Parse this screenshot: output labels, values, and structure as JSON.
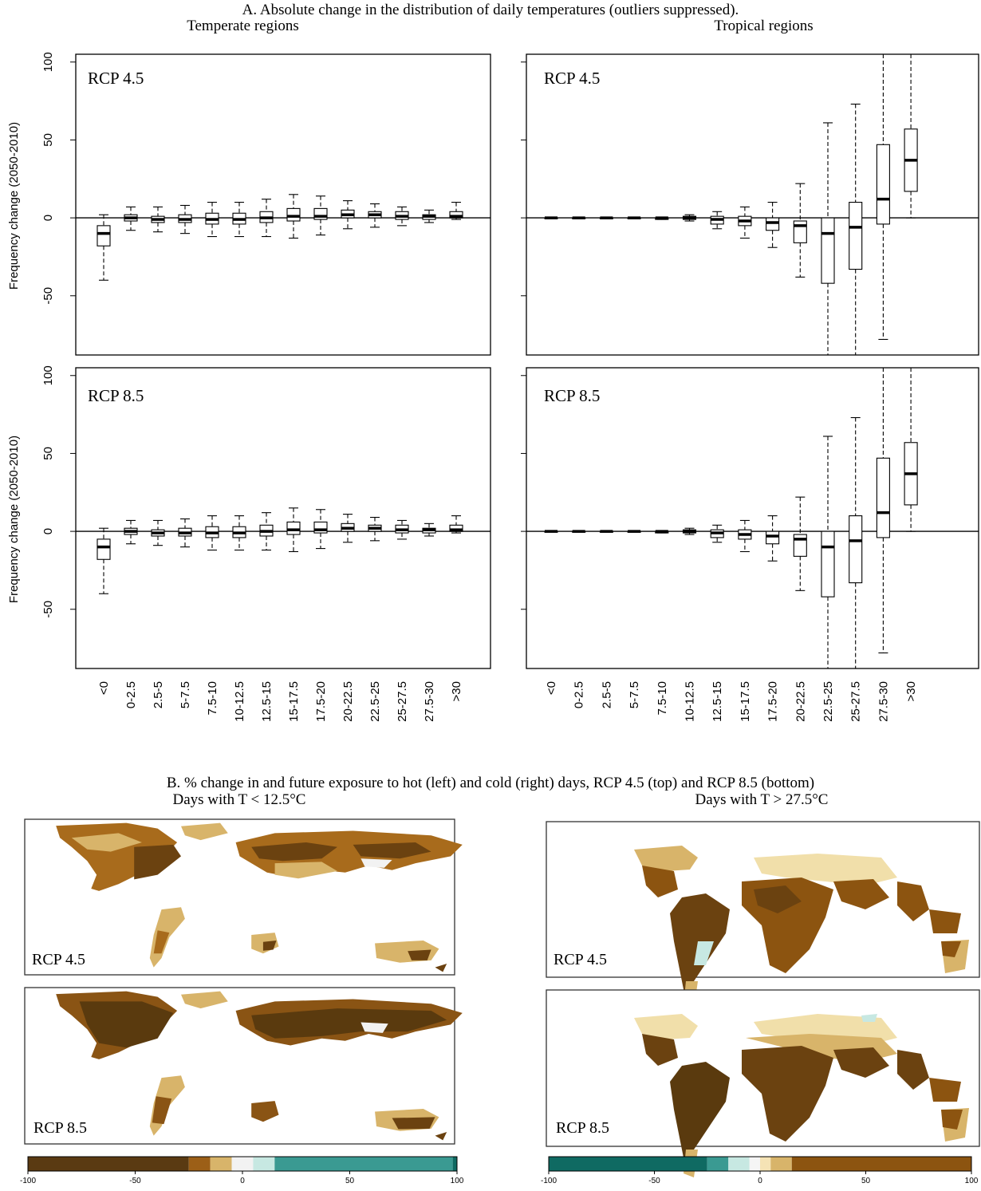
{
  "panel_a": {
    "title": "A. Absolute change in the distribution of daily temperatures (outliers suppressed).",
    "col_titles": [
      "Temperate regions",
      "Tropical regions"
    ],
    "ylabel": "Frequency change (2050-2010)",
    "row_labels": [
      "RCP 4.5",
      "RCP 8.5"
    ]
  },
  "panel_b": {
    "title": "B. % change in and future exposure to hot (left) and cold (right) days, RCP 4.5 (top) and RCP 8.5 (bottom)",
    "left_title": "Days with T < 12.5°C",
    "right_title": "Days with T > 27.5°C",
    "map_labels": [
      "RCP 4.5",
      "RCP 8.5"
    ],
    "colorbar_ticks": [
      "-100",
      "-50",
      "0",
      "50",
      "100"
    ],
    "left_colorbar": [
      {
        "from": -100,
        "to": -25,
        "color": "#5a3a12"
      },
      {
        "from": -25,
        "to": -15,
        "color": "#9c5f17"
      },
      {
        "from": -15,
        "to": -5,
        "color": "#d8b46a"
      },
      {
        "from": -5,
        "to": 5,
        "color": "#f2f2f2"
      },
      {
        "from": 5,
        "to": 15,
        "color": "#c7e8e2"
      },
      {
        "from": 15,
        "to": 98,
        "color": "#3a9a92"
      },
      {
        "from": 98,
        "to": 100,
        "color": "#0f6a62"
      }
    ],
    "right_colorbar": [
      {
        "from": -100,
        "to": -25,
        "color": "#0f6a62"
      },
      {
        "from": -25,
        "to": -15,
        "color": "#3a9a92"
      },
      {
        "from": -15,
        "to": -5,
        "color": "#c7e8e2"
      },
      {
        "from": -5,
        "to": 0,
        "color": "#f5f5f5"
      },
      {
        "from": 0,
        "to": 5,
        "color": "#f5e3b5"
      },
      {
        "from": 5,
        "to": 15,
        "color": "#d8b46a"
      },
      {
        "from": 15,
        "to": 100,
        "color": "#8c5410"
      }
    ],
    "map_colors": {
      "dark_brown": "#6b4210",
      "mid_brown": "#9c6318",
      "tan": "#d8b46a",
      "light_tan": "#f1dfaa",
      "coast_gray": "#b8b8b8"
    }
  },
  "chart_data": [
    {
      "type": "boxplot",
      "title": "Temperate regions",
      "panel_label": "RCP 4.5",
      "ylabel": "Frequency change (2050-2010)",
      "ylim": [
        -88,
        105
      ],
      "yticks": [
        -50,
        0,
        50,
        100
      ],
      "categories": [
        "<0",
        "0-2.5",
        "2.5-5",
        "5-7.5",
        "7.5-10",
        "10-12.5",
        "12.5-15",
        "15-17.5",
        "17.5-20",
        "20-22.5",
        "22.5-25",
        "25-27.5",
        "27.5-30",
        ">30"
      ],
      "boxes": [
        {
          "wlo": -40,
          "q1": -18,
          "med": -10,
          "q3": -5,
          "whi": 2
        },
        {
          "wlo": -8,
          "q1": -2,
          "med": 0,
          "q3": 2,
          "whi": 7
        },
        {
          "wlo": -9,
          "q1": -3,
          "med": -1,
          "q3": 1,
          "whi": 7
        },
        {
          "wlo": -10,
          "q1": -3,
          "med": -1,
          "q3": 2,
          "whi": 8
        },
        {
          "wlo": -12,
          "q1": -4,
          "med": -1,
          "q3": 3,
          "whi": 10
        },
        {
          "wlo": -12,
          "q1": -4,
          "med": -1,
          "q3": 3,
          "whi": 10
        },
        {
          "wlo": -12,
          "q1": -3,
          "med": 0,
          "q3": 4,
          "whi": 12
        },
        {
          "wlo": -13,
          "q1": -2,
          "med": 1,
          "q3": 6,
          "whi": 15
        },
        {
          "wlo": -11,
          "q1": -1,
          "med": 1,
          "q3": 6,
          "whi": 14
        },
        {
          "wlo": -7,
          "q1": 0,
          "med": 2,
          "q3": 5,
          "whi": 11
        },
        {
          "wlo": -6,
          "q1": 0,
          "med": 2,
          "q3": 4,
          "whi": 9
        },
        {
          "wlo": -5,
          "q1": -1,
          "med": 1,
          "q3": 4,
          "whi": 7
        },
        {
          "wlo": -3,
          "q1": -1,
          "med": 1,
          "q3": 2,
          "whi": 5
        },
        {
          "wlo": -1,
          "q1": 0,
          "med": 1,
          "q3": 4,
          "whi": 10
        }
      ]
    },
    {
      "type": "boxplot",
      "title": "Tropical regions",
      "panel_label": "RCP 4.5",
      "ylabel": "",
      "ylim": [
        -88,
        105
      ],
      "yticks": [
        -50,
        0,
        50,
        100
      ],
      "categories": [
        "<0",
        "0-2.5",
        "2.5-5",
        "5-7.5",
        "7.5-10",
        "10-12.5",
        "12.5-15",
        "15-17.5",
        "17.5-20",
        "20-22.5",
        "22.5-25",
        "25-27.5",
        "27.5-30",
        ">30"
      ],
      "boxes": [
        {
          "wlo": 0,
          "q1": 0,
          "med": 0,
          "q3": 0,
          "whi": 0
        },
        {
          "wlo": 0,
          "q1": 0,
          "med": 0,
          "q3": 0,
          "whi": 0
        },
        {
          "wlo": 0,
          "q1": 0,
          "med": 0,
          "q3": 0,
          "whi": 0
        },
        {
          "wlo": 0,
          "q1": 0,
          "med": 0,
          "q3": 0,
          "whi": 0
        },
        {
          "wlo": -1,
          "q1": -1,
          "med": 0,
          "q3": 0,
          "whi": 0
        },
        {
          "wlo": -2,
          "q1": -1,
          "med": 0,
          "q3": 1,
          "whi": 2
        },
        {
          "wlo": -7,
          "q1": -4,
          "med": -1,
          "q3": 1,
          "whi": 4
        },
        {
          "wlo": -13,
          "q1": -5,
          "med": -2,
          "q3": 1,
          "whi": 7
        },
        {
          "wlo": -19,
          "q1": -8,
          "med": -3,
          "q3": 0,
          "whi": 10
        },
        {
          "wlo": -38,
          "q1": -16,
          "med": -5,
          "q3": -2,
          "whi": 22
        },
        {
          "wlo": -88,
          "q1": -42,
          "med": -10,
          "q3": 0,
          "whi": 61
        },
        {
          "wlo": -88,
          "q1": -33,
          "med": -6,
          "q3": 10,
          "whi": 73
        },
        {
          "wlo": -78,
          "q1": -4,
          "med": 12,
          "q3": 47,
          "whi": 105
        },
        {
          "wlo": 0,
          "q1": 17,
          "med": 37,
          "q3": 57,
          "whi": 105
        }
      ]
    },
    {
      "type": "boxplot",
      "title": "Temperate regions",
      "panel_label": "RCP 8.5",
      "ylabel": "Frequency change (2050-2010)",
      "ylim": [
        -88,
        105
      ],
      "yticks": [
        -50,
        0,
        50,
        100
      ],
      "categories": [
        "<0",
        "0-2.5",
        "2.5-5",
        "5-7.5",
        "7.5-10",
        "10-12.5",
        "12.5-15",
        "15-17.5",
        "17.5-20",
        "20-22.5",
        "22.5-25",
        "25-27.5",
        "27.5-30",
        ">30"
      ],
      "boxes": [
        {
          "wlo": -40,
          "q1": -18,
          "med": -10,
          "q3": -5,
          "whi": 2
        },
        {
          "wlo": -8,
          "q1": -2,
          "med": 0,
          "q3": 2,
          "whi": 7
        },
        {
          "wlo": -9,
          "q1": -3,
          "med": -1,
          "q3": 1,
          "whi": 7
        },
        {
          "wlo": -10,
          "q1": -3,
          "med": -1,
          "q3": 2,
          "whi": 8
        },
        {
          "wlo": -12,
          "q1": -4,
          "med": -1,
          "q3": 3,
          "whi": 10
        },
        {
          "wlo": -12,
          "q1": -4,
          "med": -1,
          "q3": 3,
          "whi": 10
        },
        {
          "wlo": -12,
          "q1": -3,
          "med": 0,
          "q3": 4,
          "whi": 12
        },
        {
          "wlo": -13,
          "q1": -2,
          "med": 1,
          "q3": 6,
          "whi": 15
        },
        {
          "wlo": -11,
          "q1": -1,
          "med": 1,
          "q3": 6,
          "whi": 14
        },
        {
          "wlo": -7,
          "q1": 0,
          "med": 2,
          "q3": 5,
          "whi": 11
        },
        {
          "wlo": -6,
          "q1": 0,
          "med": 2,
          "q3": 4,
          "whi": 9
        },
        {
          "wlo": -5,
          "q1": -1,
          "med": 1,
          "q3": 4,
          "whi": 7
        },
        {
          "wlo": -3,
          "q1": -1,
          "med": 1,
          "q3": 2,
          "whi": 5
        },
        {
          "wlo": -1,
          "q1": 0,
          "med": 1,
          "q3": 4,
          "whi": 10
        }
      ]
    },
    {
      "type": "boxplot",
      "title": "Tropical regions",
      "panel_label": "RCP 8.5",
      "ylabel": "",
      "ylim": [
        -88,
        105
      ],
      "yticks": [
        -50,
        0,
        50,
        100
      ],
      "categories": [
        "<0",
        "0-2.5",
        "2.5-5",
        "5-7.5",
        "7.5-10",
        "10-12.5",
        "12.5-15",
        "15-17.5",
        "17.5-20",
        "20-22.5",
        "22.5-25",
        "25-27.5",
        "27.5-30",
        ">30"
      ],
      "boxes": [
        {
          "wlo": 0,
          "q1": 0,
          "med": 0,
          "q3": 0,
          "whi": 0
        },
        {
          "wlo": 0,
          "q1": 0,
          "med": 0,
          "q3": 0,
          "whi": 0
        },
        {
          "wlo": 0,
          "q1": 0,
          "med": 0,
          "q3": 0,
          "whi": 0
        },
        {
          "wlo": 0,
          "q1": 0,
          "med": 0,
          "q3": 0,
          "whi": 0
        },
        {
          "wlo": -1,
          "q1": -1,
          "med": 0,
          "q3": 0,
          "whi": 0
        },
        {
          "wlo": -2,
          "q1": -1,
          "med": 0,
          "q3": 1,
          "whi": 2
        },
        {
          "wlo": -7,
          "q1": -4,
          "med": -1,
          "q3": 1,
          "whi": 4
        },
        {
          "wlo": -13,
          "q1": -5,
          "med": -2,
          "q3": 1,
          "whi": 7
        },
        {
          "wlo": -19,
          "q1": -8,
          "med": -3,
          "q3": 0,
          "whi": 10
        },
        {
          "wlo": -38,
          "q1": -16,
          "med": -5,
          "q3": -2,
          "whi": 22
        },
        {
          "wlo": -88,
          "q1": -42,
          "med": -10,
          "q3": 0,
          "whi": 61
        },
        {
          "wlo": -88,
          "q1": -33,
          "med": -6,
          "q3": 10,
          "whi": 73
        },
        {
          "wlo": -78,
          "q1": -4,
          "med": 12,
          "q3": 47,
          "whi": 105
        },
        {
          "wlo": 0,
          "q1": 17,
          "med": 37,
          "q3": 57,
          "whi": 105
        }
      ]
    }
  ]
}
